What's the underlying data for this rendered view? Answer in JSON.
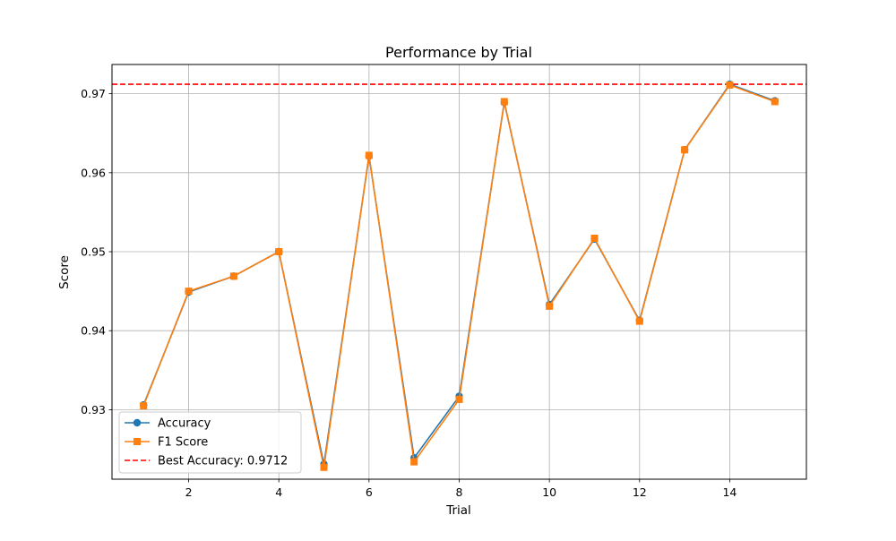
{
  "chart_data": {
    "type": "line",
    "title": "Performance by Trial",
    "xlabel": "Trial",
    "ylabel": "Score",
    "x": [
      1,
      2,
      3,
      4,
      5,
      6,
      7,
      8,
      9,
      10,
      11,
      12,
      13,
      14,
      15
    ],
    "xlim": [
      0.3,
      15.7
    ],
    "ylim": [
      0.9212,
      0.9737
    ],
    "xticks": [
      2,
      4,
      6,
      8,
      10,
      12,
      14
    ],
    "yticks": [
      0.93,
      0.94,
      0.95,
      0.96,
      0.97
    ],
    "xtick_labels": [
      "2",
      "4",
      "6",
      "8",
      "10",
      "12",
      "14"
    ],
    "ytick_labels": [
      "0.93",
      "0.94",
      "0.95",
      "0.96",
      "0.97"
    ],
    "grid": true,
    "legend_position": "lower-left",
    "series": [
      {
        "name": "Accuracy",
        "color": "#1f77b4",
        "marker": "circle",
        "values": [
          0.9306,
          0.9449,
          0.9469,
          0.95,
          0.9231,
          0.9621,
          0.9239,
          0.9317,
          0.9689,
          0.9433,
          0.9516,
          0.9413,
          0.9629,
          0.9712,
          0.9691
        ]
      },
      {
        "name": "F1 Score",
        "color": "#ff7f0e",
        "marker": "square",
        "values": [
          0.9305,
          0.945,
          0.9469,
          0.95,
          0.9227,
          0.9622,
          0.9234,
          0.9313,
          0.969,
          0.9431,
          0.9517,
          0.9412,
          0.9629,
          0.9711,
          0.969
        ]
      }
    ],
    "reference_line": {
      "name": "Best Accuracy: 0.9712",
      "value": 0.9712,
      "color": "#ff0000",
      "style": "dashed"
    }
  }
}
